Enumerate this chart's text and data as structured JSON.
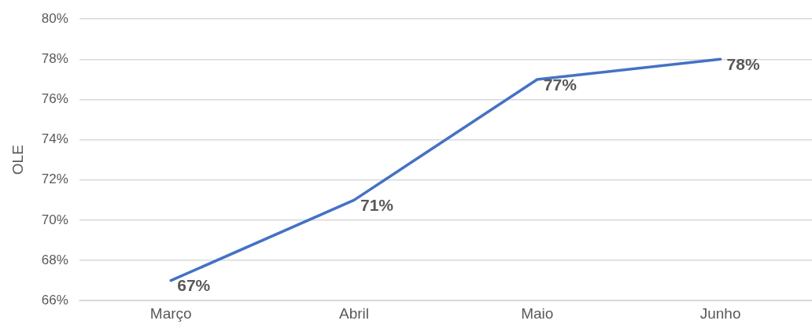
{
  "chart_data": {
    "type": "line",
    "ylabel": "OLE",
    "categories": [
      "Março",
      "Abril",
      "Maio",
      "Junho"
    ],
    "series": [
      {
        "color": "#4472c4",
        "values": [
          67,
          71,
          77,
          78
        ],
        "value_labels": [
          "67%",
          "71%",
          "77%",
          "78%"
        ]
      }
    ],
    "ylim": [
      66,
      80
    ],
    "yticks": [
      {
        "value": 66,
        "label": "66%"
      },
      {
        "value": 68,
        "label": "68%"
      },
      {
        "value": 70,
        "label": "70%"
      },
      {
        "value": 72,
        "label": "72%"
      },
      {
        "value": 74,
        "label": "74%"
      },
      {
        "value": 76,
        "label": "76%"
      },
      {
        "value": 78,
        "label": "78%"
      },
      {
        "value": 80,
        "label": "80%"
      }
    ],
    "grid": "y",
    "legend": false,
    "marker": "none"
  }
}
